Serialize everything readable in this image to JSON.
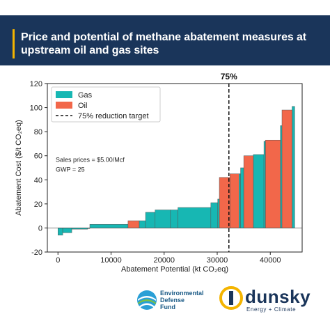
{
  "header": {
    "title": "Price and potential of methane abatement measures at upstream oil and gas sites"
  },
  "logos": {
    "edf_lines": [
      "Environmental",
      "Defense",
      "Fund"
    ],
    "dunsky_name": "dunsky",
    "dunsky_tagline": "Energy + Climate"
  },
  "colors": {
    "banner": "#1a355a",
    "accent": "#f4b400",
    "gas": "#17b7b3",
    "oil": "#f2674a"
  },
  "chart_data": {
    "type": "bar",
    "subtype": "marginal-abatement-cost-curve",
    "xlabel": "Abatement Potential (kt CO₂eq)",
    "ylabel": "Abatement Cost ($/t CO₂eq)",
    "xlim": [
      -2000,
      46000
    ],
    "ylim": [
      -20,
      120
    ],
    "xticks": [
      0,
      10000,
      20000,
      30000,
      40000
    ],
    "xtick_labels": [
      "0",
      "10000",
      "20000",
      "30000",
      "40000"
    ],
    "yticks": [
      -20,
      0,
      20,
      40,
      60,
      80,
      100,
      120
    ],
    "grid": false,
    "legend": {
      "placement": "top-left",
      "entries": [
        {
          "label": "Gas",
          "kind": "gas"
        },
        {
          "label": "Oil",
          "kind": "oil"
        },
        {
          "label": "75% reduction target",
          "kind": "dashed-line"
        }
      ]
    },
    "annotations": [
      "Sales prices = $5.00/Mcf",
      "GWP = 25"
    ],
    "target_line": {
      "x": 32200,
      "label": "75%"
    },
    "series": [
      {
        "name": "Gas",
        "bars": [
          {
            "x0": 0,
            "x1": 900,
            "value": -6
          },
          {
            "x0": 900,
            "x1": 2600,
            "value": -4
          },
          {
            "x0": 2600,
            "x1": 5600,
            "value": -1
          },
          {
            "x0": 5600,
            "x1": 6000,
            "value": -0.5
          },
          {
            "x0": 6000,
            "x1": 13200,
            "value": 3
          },
          {
            "x0": 15300,
            "x1": 16500,
            "value": 6
          },
          {
            "x0": 16500,
            "x1": 18300,
            "value": 13
          },
          {
            "x0": 18300,
            "x1": 21200,
            "value": 15
          },
          {
            "x0": 21200,
            "x1": 22600,
            "value": 15
          },
          {
            "x0": 22600,
            "x1": 28800,
            "value": 17
          },
          {
            "x0": 28800,
            "x1": 30100,
            "value": 21
          },
          {
            "x0": 30100,
            "x1": 30400,
            "value": 24
          },
          {
            "x0": 34100,
            "x1": 34400,
            "value": 45
          },
          {
            "x0": 34400,
            "x1": 35000,
            "value": 50
          },
          {
            "x0": 36800,
            "x1": 38800,
            "value": 61
          },
          {
            "x0": 38800,
            "x1": 39100,
            "value": 72
          },
          {
            "x0": 41900,
            "x1": 42200,
            "value": 85
          },
          {
            "x0": 44100,
            "x1": 44600,
            "value": 101
          }
        ]
      },
      {
        "name": "Oil",
        "bars": [
          {
            "x0": 13200,
            "x1": 15300,
            "value": 6
          },
          {
            "x0": 30400,
            "x1": 32400,
            "value": 42
          },
          {
            "x0": 32400,
            "x1": 34100,
            "value": 45
          },
          {
            "x0": 35000,
            "x1": 36800,
            "value": 60
          },
          {
            "x0": 39100,
            "x1": 41900,
            "value": 73
          },
          {
            "x0": 42200,
            "x1": 44100,
            "value": 98
          }
        ]
      }
    ]
  }
}
